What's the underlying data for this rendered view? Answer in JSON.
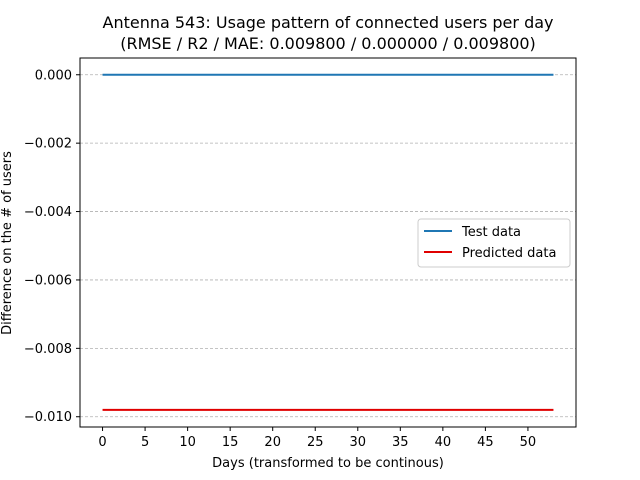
{
  "chart_data": {
    "type": "line",
    "title": "Antenna 543: Usage pattern of connected users per day",
    "subtitle": "(RMSE / R2 / MAE: 0.009800 / 0.000000 / 0.009800)",
    "xlabel": "Days (transformed to be continous)",
    "ylabel": "Difference on the # of users",
    "xlim": [
      -2.65,
      55.65
    ],
    "ylim": [
      -0.0103,
      0.00049
    ],
    "xticks": [
      0,
      5,
      10,
      15,
      20,
      25,
      30,
      35,
      40,
      45,
      50
    ],
    "xtick_labels": [
      "0",
      "5",
      "10",
      "15",
      "20",
      "25",
      "30",
      "35",
      "40",
      "45",
      "50"
    ],
    "yticks": [
      0.0,
      -0.002,
      -0.004,
      -0.006,
      -0.008,
      -0.01
    ],
    "ytick_labels": [
      "0.000",
      "−0.002",
      "−0.004",
      "−0.006",
      "−0.008",
      "−0.010"
    ],
    "grid": "y-dashed",
    "legend_position": "center-right",
    "series": [
      {
        "name": "Test data",
        "color": "#1f77b4",
        "x": [
          0,
          53
        ],
        "y": [
          0.0,
          0.0
        ]
      },
      {
        "name": "Predicted data",
        "color": "#e00000",
        "x": [
          0,
          53
        ],
        "y": [
          -0.0098,
          -0.0098
        ]
      }
    ]
  }
}
